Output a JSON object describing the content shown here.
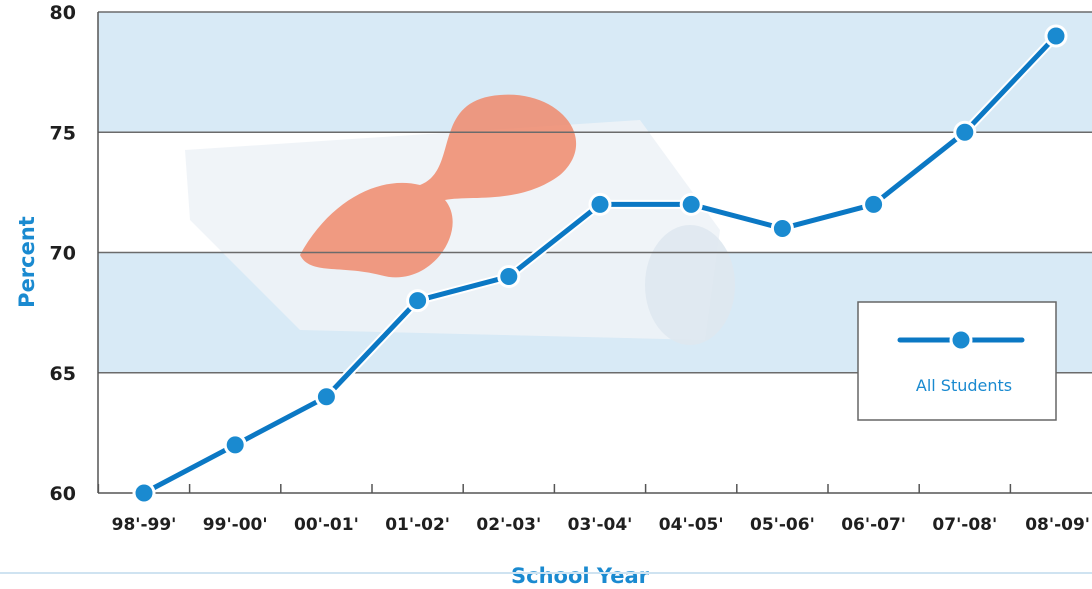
{
  "chart_data": {
    "type": "line",
    "title": "",
    "xlabel": "School Year",
    "ylabel": "Percent",
    "categories": [
      "98'-99'",
      "99'-00'",
      "00'-01'",
      "01'-02'",
      "02'-03'",
      "03'-04'",
      "04'-05'",
      "05'-06'",
      "06'-07'",
      "07'-08'",
      "08'-09'"
    ],
    "series": [
      {
        "name": "All Students",
        "values": [
          60,
          62,
          64,
          68,
          69,
          72,
          72,
          71,
          72,
          75,
          79
        ]
      }
    ],
    "ylim": [
      60,
      80
    ],
    "yticks": [
      "60",
      "65",
      "70",
      "75",
      "80"
    ],
    "grid": true,
    "legend_position": "right",
    "colors": {
      "line": "#0b78c4",
      "marker_fill": "#1a8ad0",
      "band": "#d8eaf6",
      "axis_label": "#1a8ad0"
    }
  }
}
